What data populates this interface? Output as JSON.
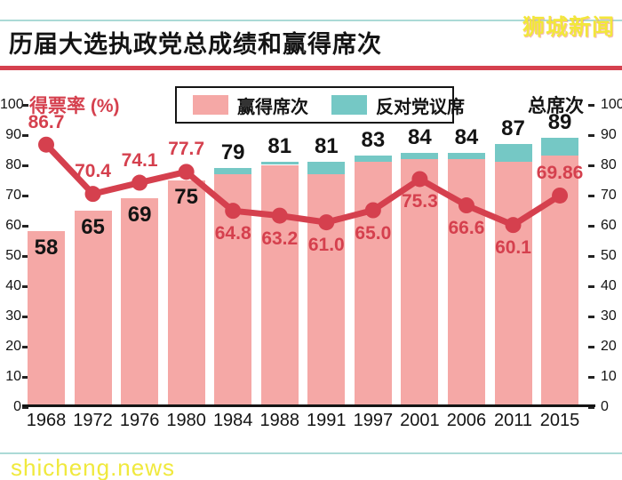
{
  "header": {
    "title": "历届大选执政党总成绩和赢得席次",
    "logo": "狮城新闻"
  },
  "footer": {
    "watermark": "shicheng.news"
  },
  "chart_data": {
    "type": "bar",
    "subtype": "stacked bars with overlaid line",
    "title": "历届大选执政党总成绩和赢得席次",
    "categories": [
      "1968",
      "1972",
      "1976",
      "1980",
      "1984",
      "1988",
      "1991",
      "1997",
      "2001",
      "2006",
      "2011",
      "2015"
    ],
    "left_axis": {
      "title": "得票率 (%)",
      "min": 0,
      "max": 100,
      "step": 10
    },
    "right_axis": {
      "title": "总席次",
      "min": 0,
      "max": 100,
      "step": 10
    },
    "grid": false,
    "legend": {
      "position": "top",
      "items": [
        {
          "label": "赢得席次",
          "color": "#F5A8A6"
        },
        {
          "label": "反对党议席",
          "color": "#75C8C5"
        }
      ]
    },
    "bar_total_labels": [
      58,
      65,
      69,
      75,
      79,
      81,
      81,
      83,
      84,
      84,
      87,
      89
    ],
    "series": [
      {
        "name": "赢得席次",
        "type": "bar",
        "stack": true,
        "color": "#F5A8A6",
        "values": [
          58,
          65,
          69,
          75,
          77,
          80,
          77,
          81,
          82,
          82,
          81,
          83
        ]
      },
      {
        "name": "反对党议席",
        "type": "bar",
        "stack": true,
        "color": "#75C8C5",
        "values": [
          0,
          0,
          0,
          0,
          2,
          1,
          4,
          2,
          2,
          2,
          6,
          6
        ]
      },
      {
        "name": "得票率 (%)",
        "type": "line",
        "color": "#D5404E",
        "values": [
          86.7,
          70.4,
          74.1,
          77.7,
          64.8,
          63.2,
          61.0,
          65.0,
          75.3,
          66.6,
          60.1,
          69.86
        ],
        "value_labels": [
          "86.7",
          "70.4",
          "74.1",
          "77.7",
          "64.8",
          "63.2",
          "61.0",
          "65.0",
          "75.3",
          "66.6",
          "60.1",
          "69.86"
        ],
        "label_side": [
          "above",
          "above",
          "above",
          "above",
          "below",
          "below",
          "below",
          "below",
          "below",
          "below",
          "below",
          "above"
        ]
      }
    ],
    "colors": {
      "bar_won": "#F5A8A6",
      "bar_opposition": "#75C8C5",
      "line": "#D5404E",
      "accent_rule": "#D5404E",
      "teal_rule": "#ABDAD6",
      "logo_yellow": "#F2E73A"
    }
  }
}
